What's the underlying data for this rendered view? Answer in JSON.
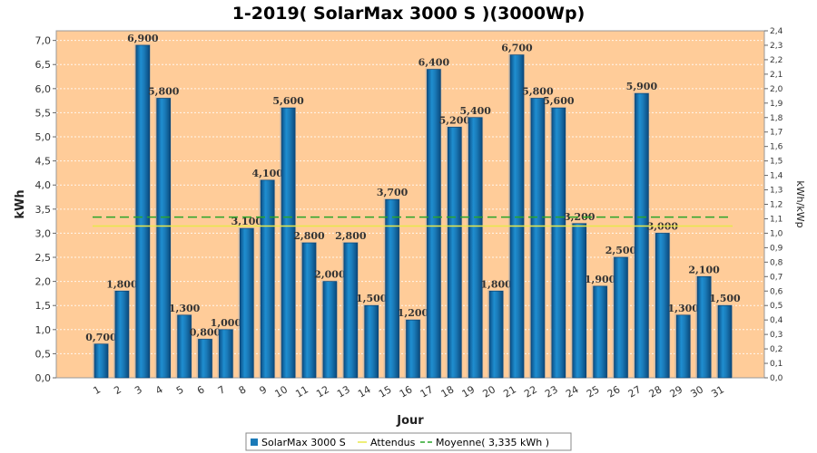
{
  "chart_data": {
    "type": "bar",
    "title": "1-2019( SolarMax 3000 S )(3000Wp)",
    "xlabel": "Jour",
    "ylabel": "kWh",
    "y2label": "kWh/kWp",
    "categories": [
      "1",
      "2",
      "3",
      "4",
      "5",
      "6",
      "7",
      "8",
      "9",
      "10",
      "11",
      "12",
      "13",
      "14",
      "15",
      "16",
      "17",
      "18",
      "19",
      "20",
      "21",
      "22",
      "23",
      "24",
      "25",
      "26",
      "27",
      "28",
      "29",
      "30",
      "31"
    ],
    "series": [
      {
        "name": "SolarMax 3000 S",
        "color": "#1a7ab8",
        "values": [
          0.7,
          1.8,
          6.9,
          5.8,
          1.3,
          0.8,
          1.0,
          3.1,
          4.1,
          5.6,
          2.8,
          2.0,
          2.8,
          1.5,
          3.7,
          1.2,
          6.4,
          5.2,
          5.4,
          1.8,
          6.7,
          5.8,
          5.6,
          3.2,
          1.9,
          2.5,
          5.9,
          3.0,
          1.3,
          2.1,
          1.5
        ],
        "labels": [
          "0,700",
          "1,800",
          "6,900",
          "5,800",
          "1,300",
          "0,800",
          "1,000",
          "3,100",
          "4,100",
          "5,600",
          "2,800",
          "2,000",
          "2,800",
          "1,500",
          "3,700",
          "1,200",
          "6,400",
          "5,200",
          "5,400",
          "1,800",
          "6,700",
          "5,800",
          "5,600",
          "3,200",
          "1,900",
          "2,500",
          "5,900",
          "3,000",
          "1,300",
          "2,100",
          "1,500"
        ]
      }
    ],
    "lines": [
      {
        "name": "Attendus",
        "color": "#e8e84a",
        "value": 3.15
      },
      {
        "name": "Moyenne( 3,335 kWh )",
        "color": "#2aa52a",
        "value": 3.335
      }
    ],
    "ylim": [
      0,
      7.2
    ],
    "yticks": [
      "0,0",
      "0,5",
      "1,0",
      "1,5",
      "2,0",
      "2,5",
      "3,0",
      "3,5",
      "4,0",
      "4,5",
      "5,0",
      "5,5",
      "6,0",
      "6,5",
      "7,0"
    ],
    "y2lim": [
      0,
      2.4
    ],
    "y2ticks": [
      "0,0",
      "0,1",
      "0,2",
      "0,3",
      "0,4",
      "0,5",
      "0,6",
      "0,7",
      "0,8",
      "0,9",
      "1,0",
      "1,1",
      "1,2",
      "1,3",
      "1,4",
      "1,5",
      "1,6",
      "1,7",
      "1,8",
      "1,9",
      "2,0",
      "2,1",
      "2,2",
      "2,3",
      "2,4"
    ],
    "plot_background": "#ffcc99",
    "grid": true,
    "legend_position": "bottom"
  }
}
